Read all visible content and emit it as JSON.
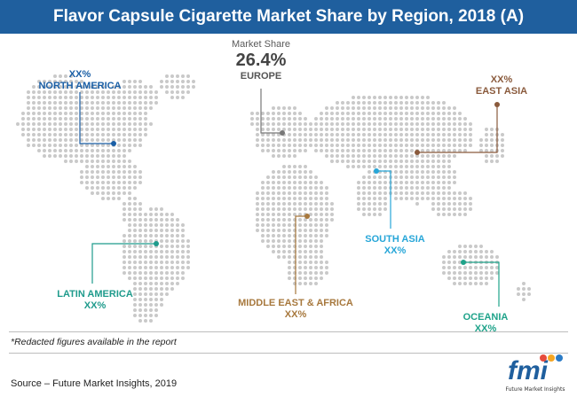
{
  "title": "Flavor Capsule Cigarette Market Share by Region, 2018 (A)",
  "europe": {
    "label": "Market Share",
    "value": "26.4%",
    "name": "EUROPE"
  },
  "regions": {
    "north_america": {
      "value": "XX%",
      "name": "NORTH AMERICA",
      "color": "#1a5fa6"
    },
    "latin_america": {
      "name": "LATIN AMERICA",
      "value": "XX%",
      "color": "#1f9b8c"
    },
    "middle_east_africa": {
      "name": "MIDDLE EAST & AFRICA",
      "value": "XX%",
      "color": "#a7783d"
    },
    "south_asia": {
      "name": "SOUTH ASIA",
      "value": "XX%",
      "color": "#27a6d8"
    },
    "oceania": {
      "name": "OCEANIA",
      "value": "XX%",
      "color": "#1fa38a"
    },
    "east_asia": {
      "value": "XX%",
      "name": "EAST ASIA",
      "color": "#8a5a3c"
    }
  },
  "note": "*Redacted figures available in the report",
  "source": "Source – Future Market Insights, 2019",
  "logo": {
    "text": "fmi",
    "caption": "Future Market Insights"
  },
  "colors": {
    "title_bar": "#1f5f9e",
    "map_dots": "#c9c9c9"
  }
}
